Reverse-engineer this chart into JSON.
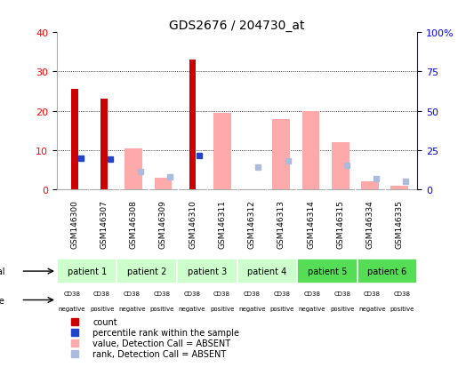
{
  "title": "GDS2676 / 204730_at",
  "samples": [
    "GSM146300",
    "GSM146307",
    "GSM146308",
    "GSM146309",
    "GSM146310",
    "GSM146311",
    "GSM146312",
    "GSM146313",
    "GSM146314",
    "GSM146315",
    "GSM146334",
    "GSM146335"
  ],
  "red_bars": [
    25.5,
    23.0,
    null,
    null,
    33.0,
    null,
    null,
    null,
    null,
    null,
    null,
    null
  ],
  "blue_squares": [
    20.0,
    19.5,
    null,
    null,
    21.5,
    null,
    null,
    null,
    null,
    null,
    null,
    null
  ],
  "pink_bars": [
    null,
    null,
    10.5,
    3.0,
    null,
    19.5,
    null,
    18.0,
    20.0,
    12.0,
    2.0,
    1.0
  ],
  "lightblue_squares": [
    null,
    null,
    11.5,
    8.0,
    null,
    null,
    14.0,
    18.0,
    null,
    15.5,
    7.0,
    5.0
  ],
  "patients": [
    {
      "label": "patient 1",
      "cols": [
        0,
        1
      ],
      "color": "#ccffcc"
    },
    {
      "label": "patient 2",
      "cols": [
        2,
        3
      ],
      "color": "#ccffcc"
    },
    {
      "label": "patient 3",
      "cols": [
        4,
        5
      ],
      "color": "#ccffcc"
    },
    {
      "label": "patient 4",
      "cols": [
        6,
        7
      ],
      "color": "#ccffcc"
    },
    {
      "label": "patient 5",
      "cols": [
        8,
        9
      ],
      "color": "#55dd55"
    },
    {
      "label": "patient 6",
      "cols": [
        10,
        11
      ],
      "color": "#55dd55"
    }
  ],
  "cell_types": [
    "CD38\nnegative",
    "CD38\npositive",
    "CD38\nnegative",
    "CD38\npositive",
    "CD38\nnegative",
    "CD38\npositive",
    "CD38\nnegative",
    "CD38\npositive",
    "CD38\nnegative",
    "CD38\npositive",
    "CD38\nnegative",
    "CD38\npositive"
  ],
  "ylim_left": [
    0,
    40
  ],
  "ylim_right": [
    0,
    100
  ],
  "yticks_left": [
    0,
    10,
    20,
    30,
    40
  ],
  "yticks_right": [
    0,
    25,
    50,
    75,
    100
  ],
  "ytick_labels_right": [
    "0",
    "25",
    "50",
    "75",
    "100%"
  ],
  "bar_width": 0.35,
  "red_color": "#cc0000",
  "blue_color": "#2244cc",
  "pink_color": "#ffaaaa",
  "lightblue_color": "#aabbdd",
  "gray_bg": "#c8c8c8",
  "purple_bg": "#dd88dd",
  "legend_items": [
    {
      "color": "#cc0000",
      "label": "count"
    },
    {
      "color": "#2244cc",
      "label": "percentile rank within the sample"
    },
    {
      "color": "#ffaaaa",
      "label": "value, Detection Call = ABSENT"
    },
    {
      "color": "#aabbdd",
      "label": "rank, Detection Call = ABSENT"
    }
  ]
}
